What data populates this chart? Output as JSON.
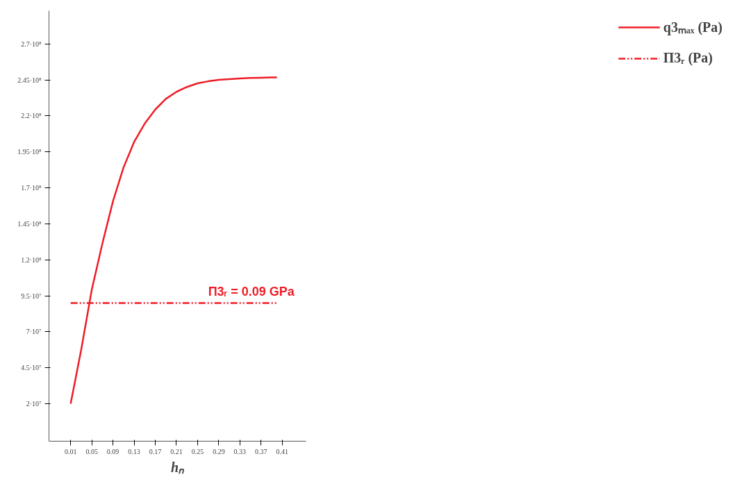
{
  "chart_data": {
    "type": "line",
    "xlabel": "hₙ",
    "x": [
      0.01,
      0.03,
      0.05,
      0.07,
      0.09,
      0.11,
      0.13,
      0.15,
      0.17,
      0.19,
      0.21,
      0.23,
      0.25,
      0.27,
      0.29,
      0.31,
      0.33,
      0.35,
      0.37,
      0.39,
      0.4
    ],
    "series": [
      {
        "name": "q3ₘₐₓ (Pa)",
        "color": "#ee1c25",
        "values": [
          20000000,
          57700000,
          99400000,
          131300000,
          160700000,
          184200000,
          201900000,
          214600000,
          224400000,
          231800000,
          236700000,
          240100000,
          242600000,
          244000000,
          245000000,
          245500000,
          246000000,
          246300000,
          246500000,
          246700000,
          246700000
        ]
      },
      {
        "name": "П3ᵣ (Pa)",
        "color": "#ee1c25",
        "line_style": "dashed",
        "x": [
          0.01,
          0.4
        ],
        "values": [
          90000000,
          90000000
        ]
      }
    ],
    "annotations": [
      {
        "text": "П3ᵣ = 0.09 GPa",
        "x": 0.27,
        "y": 90000000
      }
    ],
    "xlim": [
      -0.031,
      0.455
    ],
    "ylim": [
      -6000000,
      293000000
    ],
    "xticks": [
      0.01,
      0.05,
      0.09,
      0.13,
      0.17,
      0.21,
      0.25,
      0.29,
      0.33,
      0.37,
      0.41
    ],
    "yticks": [
      {
        "value": 20000000,
        "label": "2·10⁷"
      },
      {
        "value": 45000000,
        "label": "4.5·10⁷"
      },
      {
        "value": 70000000,
        "label": "7·10⁷"
      },
      {
        "value": 95000000,
        "label": "9.5·10⁷"
      },
      {
        "value": 120000000,
        "label": "1.2·10⁸"
      },
      {
        "value": 145000000,
        "label": "1.45·10⁸"
      },
      {
        "value": 170000000,
        "label": "1.7·10⁸"
      },
      {
        "value": 195000000,
        "label": "1.95·10⁸"
      },
      {
        "value": 220000000,
        "label": "2.2·10⁸"
      },
      {
        "value": 245000000,
        "label": "2.45·10⁸"
      },
      {
        "value": 270000000,
        "label": "2.7·10⁸"
      }
    ],
    "grid": false,
    "legend": "right",
    "marker": "none",
    "line_style": "solid"
  }
}
